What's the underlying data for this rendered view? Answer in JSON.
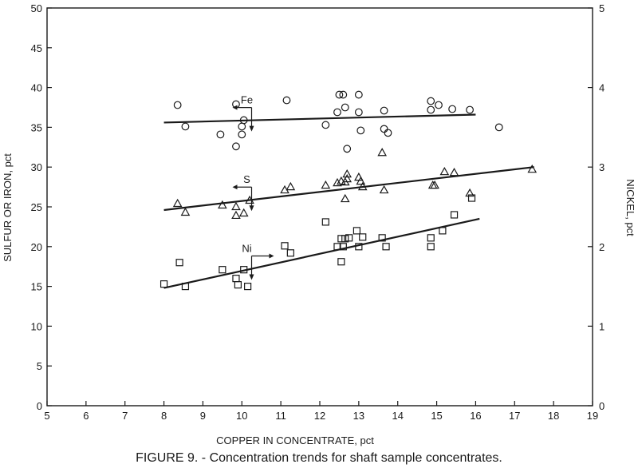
{
  "caption": "FIGURE 9. - Concentration trends for shaft sample concentrates.",
  "chart_data": {
    "type": "scatter",
    "title": "",
    "xlabel": "COPPER IN CONCENTRATE, pct",
    "ylabel": "SULFUR OR IRON, pct",
    "y2label": "NICKEL, pct",
    "xlim": [
      5,
      19
    ],
    "ylim": [
      0,
      50
    ],
    "y2lim": [
      0,
      5
    ],
    "xticks": [
      5,
      6,
      7,
      8,
      9,
      10,
      11,
      12,
      13,
      14,
      15,
      16,
      17,
      18,
      19
    ],
    "yticks": [
      0,
      5,
      10,
      15,
      20,
      25,
      30,
      35,
      40,
      45,
      50
    ],
    "y2ticks": [
      0,
      1,
      2,
      3,
      4,
      5
    ],
    "grid": false,
    "legend": "none",
    "line_color": "#1a1a1a",
    "series": [
      {
        "name": "Fe",
        "marker": "circle",
        "axis": "left",
        "points": [
          [
            8.35,
            37.8
          ],
          [
            8.55,
            35.1
          ],
          [
            9.45,
            34.1
          ],
          [
            9.85,
            37.9
          ],
          [
            9.85,
            32.6
          ],
          [
            10.0,
            35.1
          ],
          [
            10.0,
            34.1
          ],
          [
            10.05,
            35.9
          ],
          [
            11.15,
            38.4
          ],
          [
            12.15,
            35.3
          ],
          [
            12.45,
            36.9
          ],
          [
            12.5,
            39.1
          ],
          [
            12.6,
            39.1
          ],
          [
            12.65,
            37.5
          ],
          [
            12.7,
            32.3
          ],
          [
            13.0,
            39.1
          ],
          [
            13.0,
            36.9
          ],
          [
            13.05,
            34.6
          ],
          [
            13.65,
            37.1
          ],
          [
            13.65,
            34.8
          ],
          [
            13.75,
            34.3
          ],
          [
            14.85,
            37.2
          ],
          [
            14.85,
            38.3
          ],
          [
            15.05,
            37.8
          ],
          [
            15.4,
            37.3
          ],
          [
            15.85,
            37.2
          ],
          [
            16.6,
            35.0
          ]
        ],
        "trend": [
          [
            8.0,
            35.6
          ],
          [
            16.0,
            36.6
          ]
        ],
        "label": "Fe"
      },
      {
        "name": "S",
        "marker": "triangle",
        "axis": "left",
        "points": [
          [
            8.35,
            25.4
          ],
          [
            8.55,
            24.3
          ],
          [
            9.5,
            25.2
          ],
          [
            9.85,
            25.0
          ],
          [
            9.85,
            23.9
          ],
          [
            10.05,
            24.2
          ],
          [
            10.2,
            25.8
          ],
          [
            11.1,
            27.1
          ],
          [
            11.25,
            27.5
          ],
          [
            12.15,
            27.7
          ],
          [
            12.45,
            28.0
          ],
          [
            12.55,
            28.2
          ],
          [
            12.65,
            28.1
          ],
          [
            12.65,
            26.0
          ],
          [
            12.7,
            28.5
          ],
          [
            12.7,
            29.1
          ],
          [
            13.0,
            28.7
          ],
          [
            13.05,
            28.2
          ],
          [
            13.1,
            27.5
          ],
          [
            13.6,
            31.8
          ],
          [
            13.65,
            27.1
          ],
          [
            14.9,
            27.7
          ],
          [
            14.95,
            27.7
          ],
          [
            15.2,
            29.4
          ],
          [
            15.45,
            29.3
          ],
          [
            15.85,
            26.7
          ],
          [
            17.45,
            29.7
          ]
        ],
        "trend": [
          [
            8.0,
            24.6
          ],
          [
            17.5,
            30.0
          ]
        ],
        "label": "S"
      },
      {
        "name": "Ni",
        "marker": "square",
        "axis": "right",
        "points": [
          [
            8.0,
            1.53
          ],
          [
            8.4,
            1.8
          ],
          [
            8.55,
            1.5
          ],
          [
            9.5,
            1.71
          ],
          [
            9.85,
            1.6
          ],
          [
            9.9,
            1.52
          ],
          [
            10.05,
            1.71
          ],
          [
            10.15,
            1.5
          ],
          [
            11.1,
            2.01
          ],
          [
            11.25,
            1.92
          ],
          [
            12.15,
            2.31
          ],
          [
            12.45,
            2.0
          ],
          [
            12.55,
            1.81
          ],
          [
            12.55,
            2.1
          ],
          [
            12.6,
            2.0
          ],
          [
            12.65,
            2.1
          ],
          [
            12.75,
            2.11
          ],
          [
            12.95,
            2.2
          ],
          [
            13.0,
            2.0
          ],
          [
            13.1,
            2.12
          ],
          [
            13.6,
            2.11
          ],
          [
            13.7,
            2.0
          ],
          [
            14.85,
            2.11
          ],
          [
            14.85,
            2.0
          ],
          [
            15.15,
            2.2
          ],
          [
            15.45,
            2.4
          ],
          [
            15.9,
            2.61
          ]
        ],
        "trend": [
          [
            8.0,
            1.48
          ],
          [
            16.1,
            2.35
          ]
        ],
        "label": "Ni"
      }
    ]
  }
}
